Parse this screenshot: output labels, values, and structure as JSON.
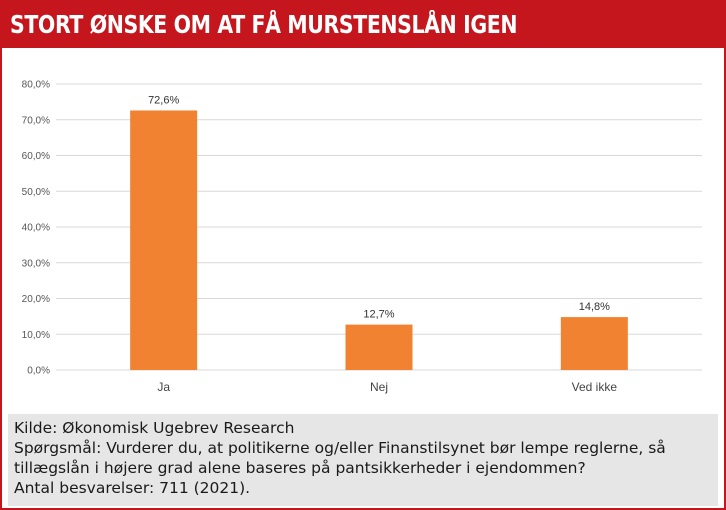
{
  "header": {
    "title": "STORT ØNSKE OM AT FÅ MURSTENSLÅN IGEN"
  },
  "colors": {
    "header_bg": "#c4161c",
    "bar": "#f08232",
    "grid": "#d9d9d9",
    "footer_bg": "#e6e6e6"
  },
  "chart_data": {
    "type": "bar",
    "categories": [
      "Ja",
      "Nej",
      "Ved ikke"
    ],
    "values": [
      72.6,
      12.7,
      14.8
    ],
    "data_labels": [
      "72,6%",
      "12,7%",
      "14,8%"
    ],
    "ylim": [
      0,
      80
    ],
    "yticks": [
      0,
      10,
      20,
      30,
      40,
      50,
      60,
      70,
      80
    ],
    "ytick_labels": [
      "0,0%",
      "10,0%",
      "20,0%",
      "30,0%",
      "40,0%",
      "50,0%",
      "60,0%",
      "70,0%",
      "80,0%"
    ],
    "grid": true,
    "legend": "none"
  },
  "footer": {
    "source": "Kilde: Økonomisk Ugebrev Research",
    "question": "Spørgsmål: Vurderer du, at politikerne og/eller Finanstilsynet bør lempe reglerne, så tillægslån i højere grad alene baseres på pantsikkerheder i ejendommen?",
    "responses": "Antal besvarelser: 711 (2021)."
  }
}
